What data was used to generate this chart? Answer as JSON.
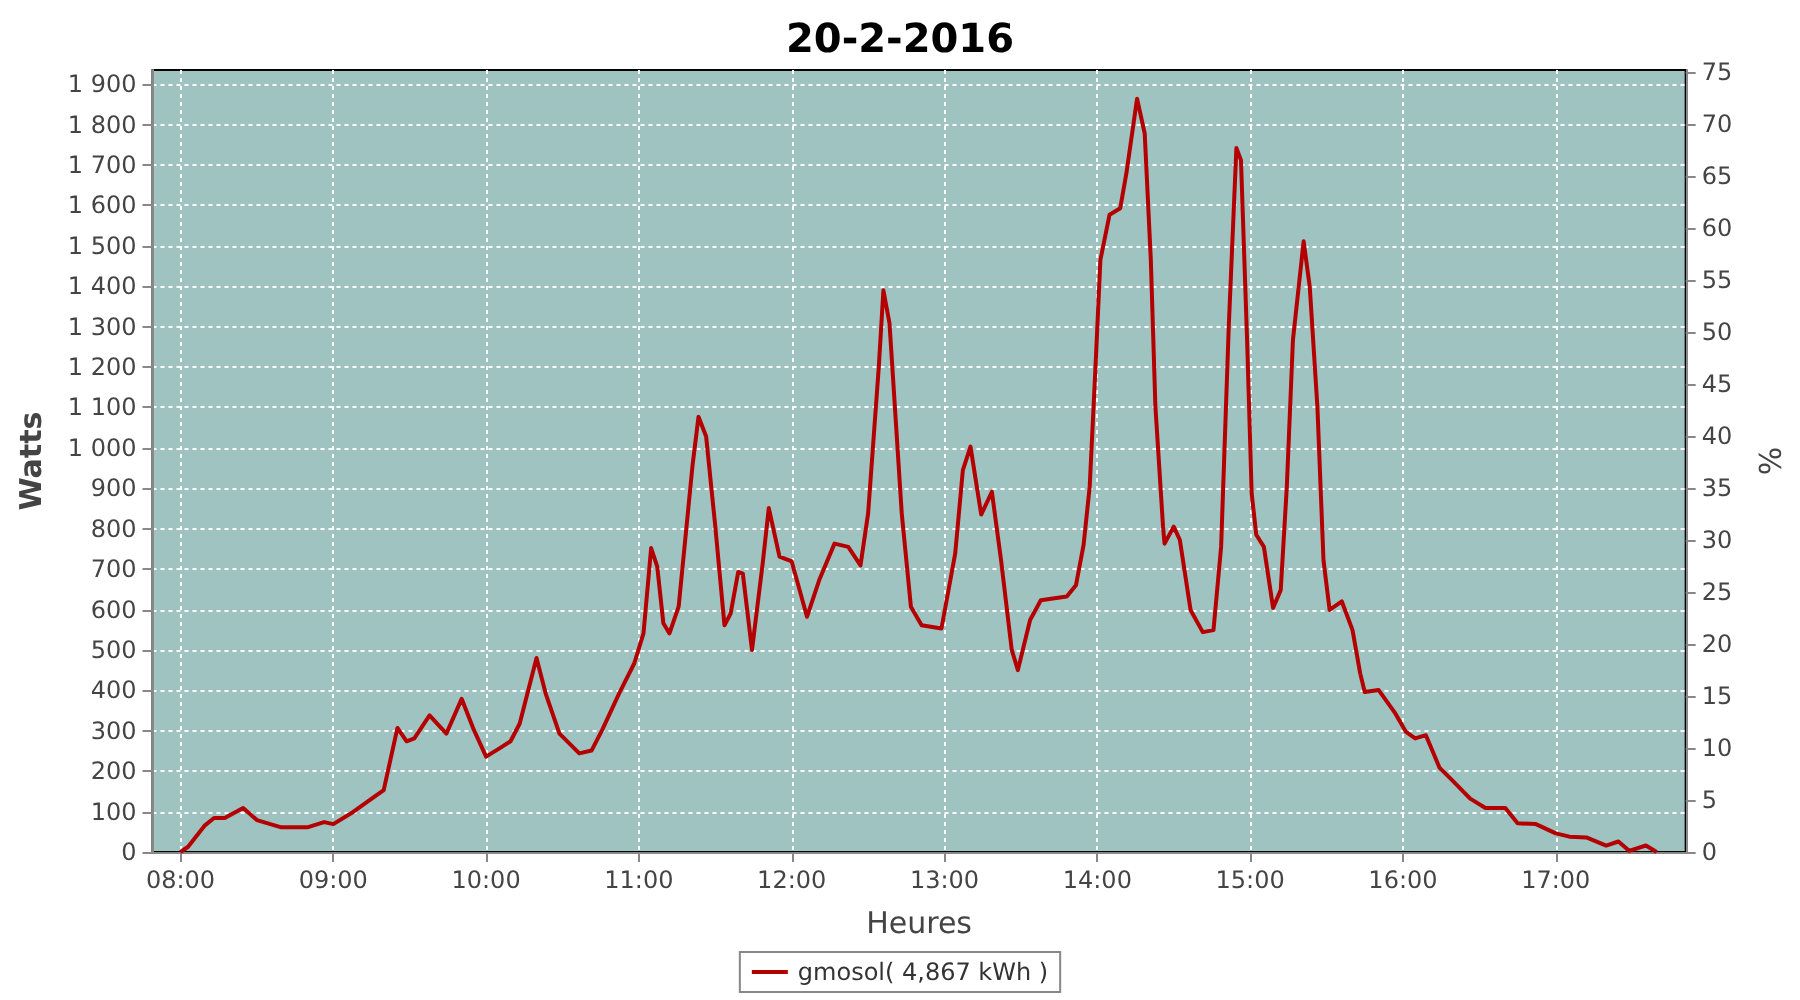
{
  "chart_data": {
    "type": "line",
    "title": "20-2-2016",
    "xlabel": "Heures",
    "ylabel": "Watts",
    "y2label": "%",
    "xlim": [
      7.817,
      17.85
    ],
    "xticks": [
      {
        "value": 8,
        "label": "08:00"
      },
      {
        "value": 9,
        "label": "09:00"
      },
      {
        "value": 10,
        "label": "10:00"
      },
      {
        "value": 11,
        "label": "11:00"
      },
      {
        "value": 12,
        "label": "12:00"
      },
      {
        "value": 13,
        "label": "13:00"
      },
      {
        "value": 14,
        "label": "14:00"
      },
      {
        "value": 15,
        "label": "15:00"
      },
      {
        "value": 16,
        "label": "16:00"
      },
      {
        "value": 17,
        "label": "17:00"
      }
    ],
    "ylim": [
      0,
      1935
    ],
    "yticks": [
      0,
      100,
      200,
      300,
      400,
      500,
      600,
      700,
      800,
      900,
      {
        "value": 1000,
        "label": "1 000"
      },
      {
        "value": 1100,
        "label": "1 100"
      },
      {
        "value": 1200,
        "label": "1 200"
      },
      {
        "value": 1300,
        "label": "1 300"
      },
      {
        "value": 1400,
        "label": "1 400"
      },
      {
        "value": 1500,
        "label": "1 500"
      },
      {
        "value": 1600,
        "label": "1 600"
      },
      {
        "value": 1700,
        "label": "1 700"
      },
      {
        "value": 1800,
        "label": "1 800"
      },
      {
        "value": 1900,
        "label": "1 900"
      }
    ],
    "y2lim": [
      0,
      75.2
    ],
    "y2ticks": [
      0,
      5,
      10,
      15,
      20,
      25,
      30,
      35,
      40,
      45,
      50,
      55,
      60,
      65,
      70,
      75
    ],
    "grid": true,
    "legend": "bottom",
    "marker": "none",
    "line_style": "solid",
    "series": [
      {
        "name": "gmosol( 4,867 kWh )",
        "color": "#b40000",
        "x": [
          8.0,
          8.05,
          8.16,
          8.22,
          8.29,
          8.41,
          8.5,
          8.66,
          8.83,
          8.94,
          9.0,
          9.13,
          9.24,
          9.33,
          9.42,
          9.48,
          9.53,
          9.63,
          9.74,
          9.84,
          9.92,
          10.0,
          10.09,
          10.16,
          10.22,
          10.33,
          10.39,
          10.48,
          10.61,
          10.69,
          10.76,
          10.87,
          10.97,
          11.03,
          11.08,
          11.12,
          11.16,
          11.2,
          11.26,
          11.35,
          11.39,
          11.44,
          11.5,
          11.56,
          11.6,
          11.65,
          11.68,
          11.74,
          11.81,
          11.85,
          11.92,
          12.0,
          12.1,
          12.18,
          12.28,
          12.37,
          12.45,
          12.5,
          12.57,
          12.6,
          12.64,
          12.72,
          12.78,
          12.85,
          12.98,
          13.07,
          13.12,
          13.17,
          13.24,
          13.31,
          13.37,
          13.44,
          13.48,
          13.56,
          13.63,
          13.8,
          13.86,
          13.91,
          13.95,
          13.99,
          14.02,
          14.08,
          14.15,
          14.19,
          14.26,
          14.31,
          14.35,
          14.38,
          14.43,
          14.44,
          14.5,
          14.54,
          14.61,
          14.69,
          14.76,
          14.81,
          14.86,
          14.91,
          14.94,
          14.98,
          15.01,
          15.04,
          15.09,
          15.15,
          15.2,
          15.24,
          15.28,
          15.35,
          15.39,
          15.44,
          15.48,
          15.52,
          15.6,
          15.67,
          15.72,
          15.75,
          15.84,
          15.95,
          16.02,
          16.08,
          16.15,
          16.24,
          16.31,
          16.44,
          16.54,
          16.67,
          16.75,
          16.87,
          17.0,
          17.09,
          17.2,
          17.33,
          17.41,
          17.48,
          17.59,
          17.66
        ],
        "values": [
          0,
          13,
          66,
          84,
          84,
          109,
          79,
          61,
          61,
          74,
          69,
          99,
          129,
          153,
          307,
          274,
          281,
          338,
          293,
          379,
          302,
          236,
          257,
          274,
          318,
          480,
          392,
          293,
          244,
          251,
          302,
          392,
          467,
          541,
          752,
          706,
          566,
          541,
          607,
          953,
          1077,
          1028,
          805,
          561,
          590,
          693,
          689,
          500,
          714,
          851,
          731,
          719,
          582,
          673,
          763,
          755,
          709,
          838,
          1201,
          1390,
          1308,
          838,
          607,
          561,
          553,
          739,
          945,
          1003,
          835,
          891,
          722,
          500,
          450,
          574,
          623,
          632,
          660,
          760,
          904,
          1217,
          1465,
          1577,
          1593,
          1679,
          1864,
          1778,
          1465,
          1102,
          805,
          763,
          805,
          772,
          599,
          544,
          549,
          755,
          1300,
          1742,
          1712,
          1267,
          887,
          785,
          755,
          604,
          648,
          904,
          1267,
          1511,
          1399,
          1102,
          722,
          599,
          620,
          549,
          442,
          396,
          401,
          343,
          297,
          281,
          289,
          208,
          182,
          132,
          109,
          109,
          71,
          69,
          46,
          38,
          36,
          16,
          26,
          3,
          16,
          0
        ]
      }
    ]
  }
}
